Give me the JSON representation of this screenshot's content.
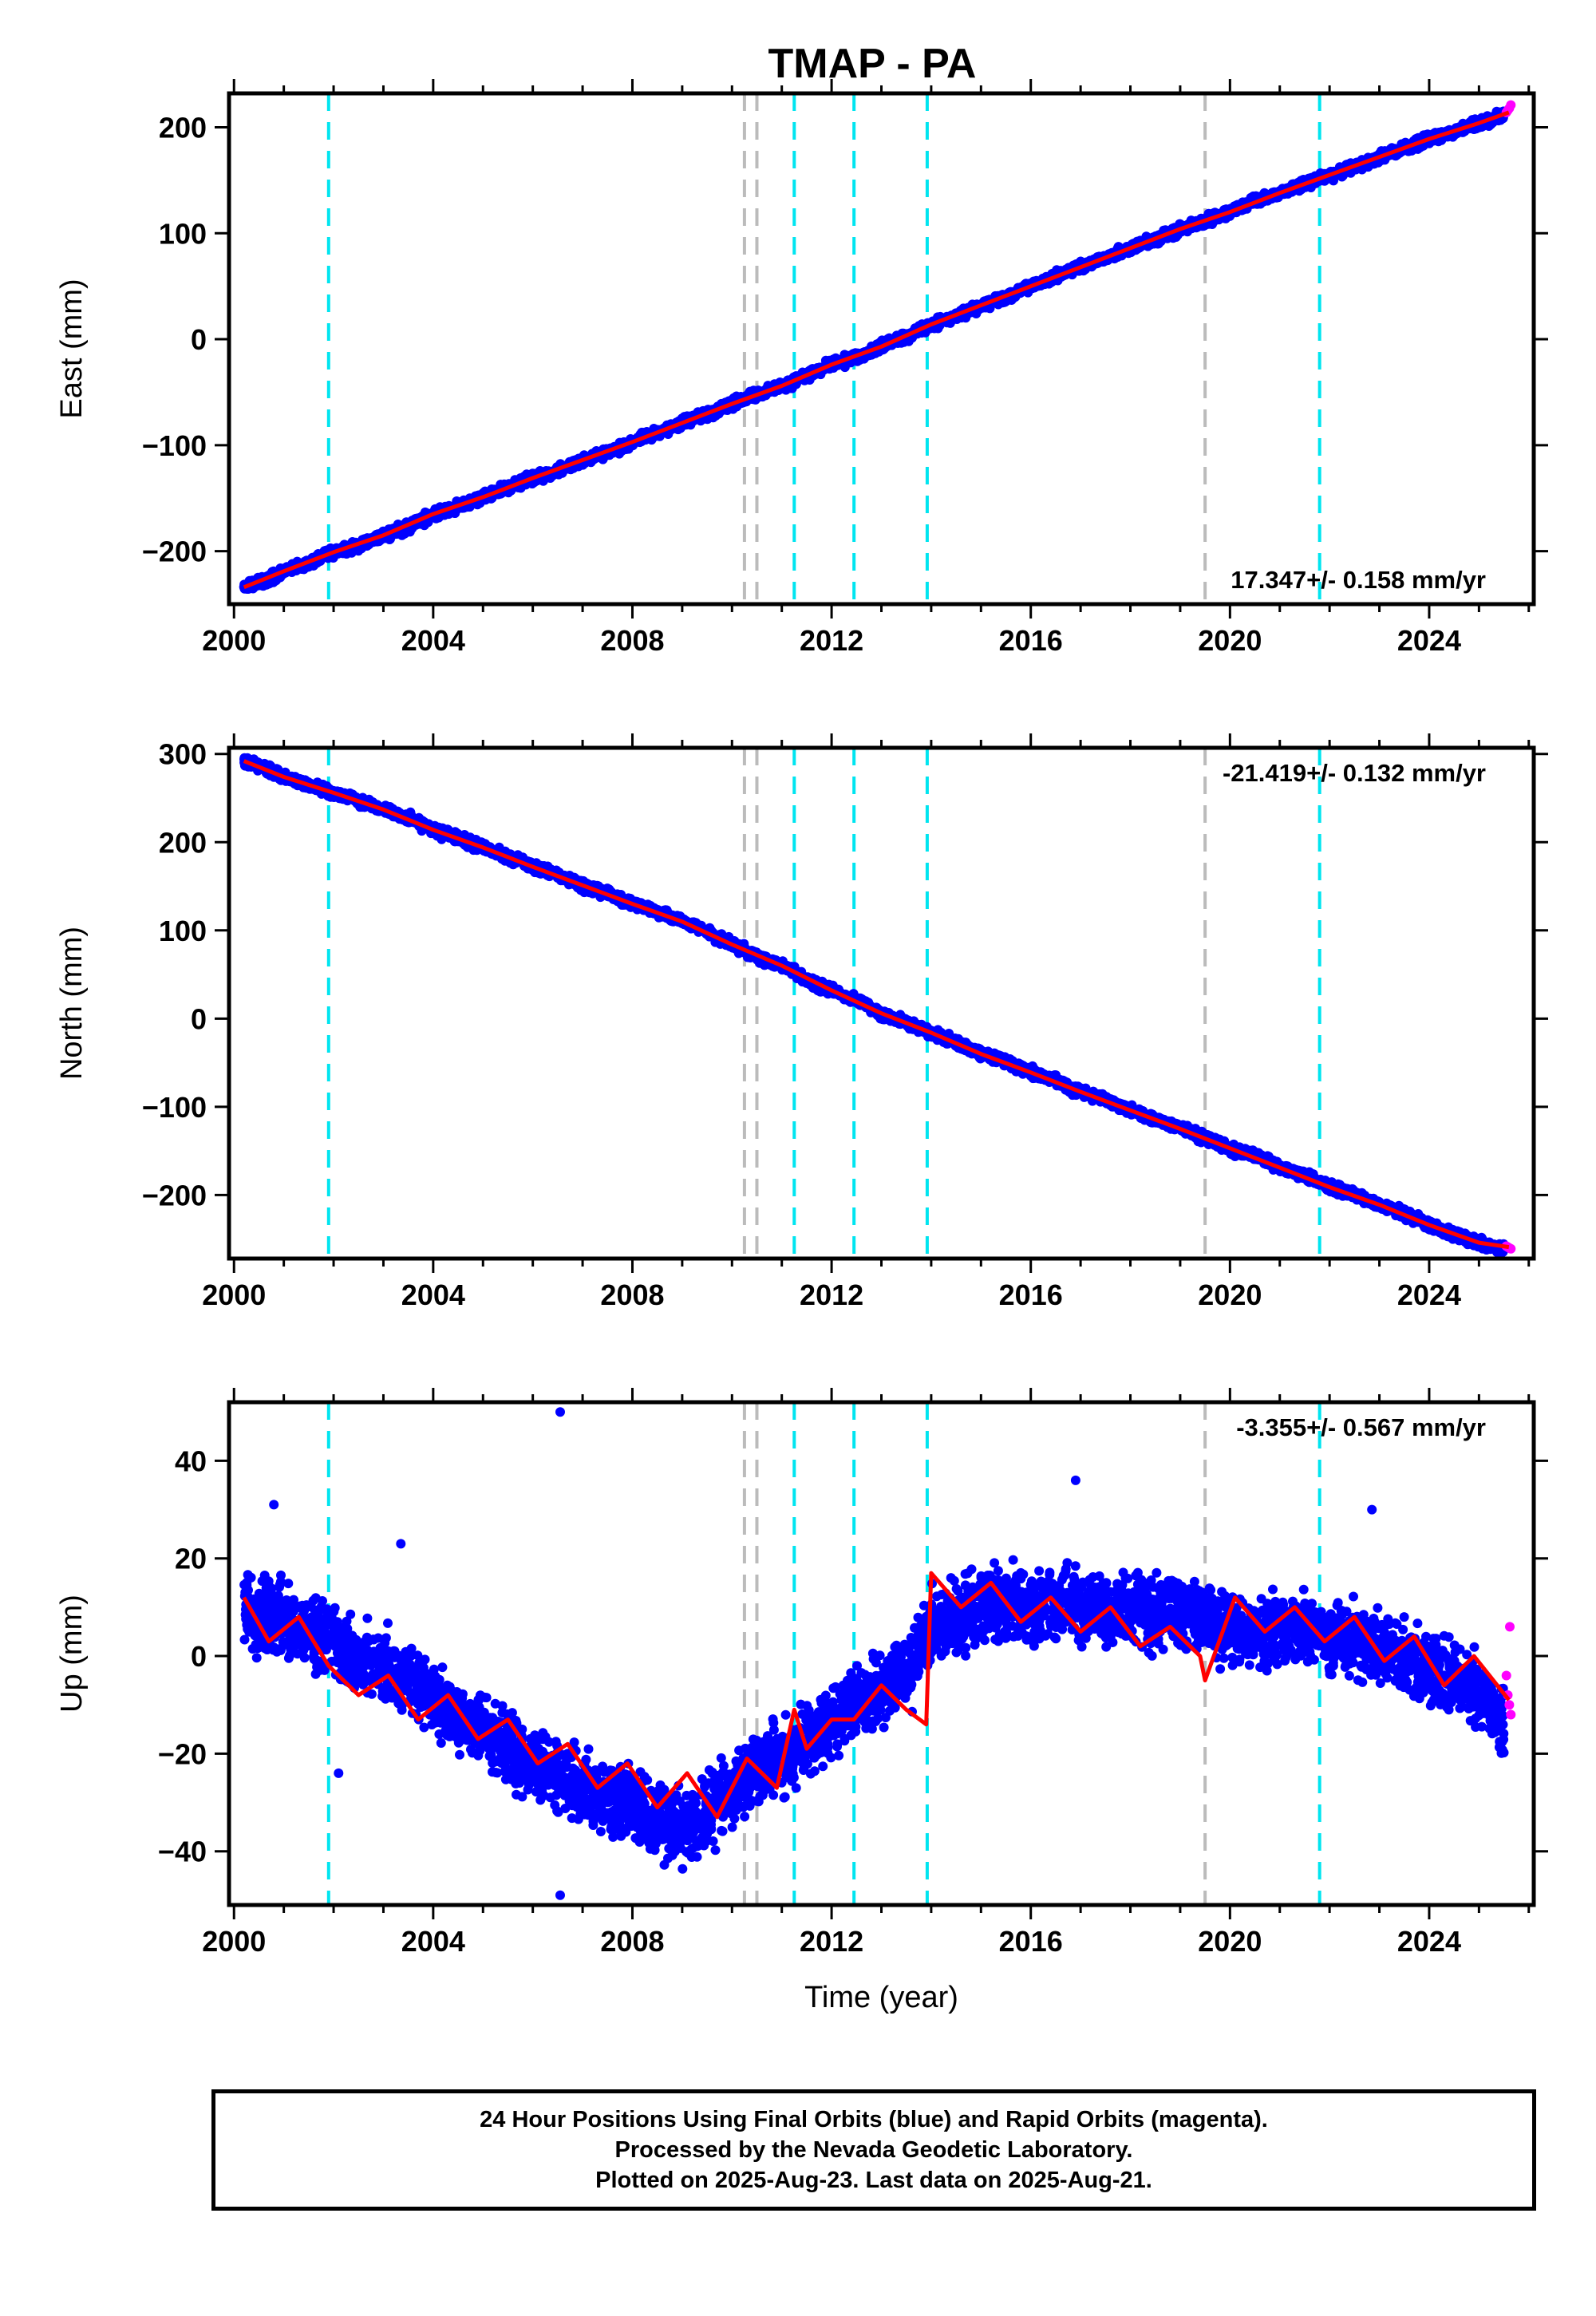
{
  "title": "TMAP - PA",
  "chart_data": [
    {
      "type": "scatter",
      "component": "East",
      "ylabel": "East (mm)",
      "xlabel": "",
      "xlim": [
        1999.9,
        2026.1
      ],
      "ylim": [
        -250,
        232
      ],
      "xticks": [
        2000,
        2004,
        2008,
        2012,
        2016,
        2020,
        2024
      ],
      "yticks": [
        -200,
        -100,
        0,
        100,
        200
      ],
      "rate_label": "17.347+/- 0.158 mm/yr",
      "rate_position": "bottom-right",
      "series": [
        {
          "kind": "final-orbits",
          "color": "#0000ff",
          "x": [
            2000.2,
            2000.6,
            2001.0,
            2001.5,
            2002.0,
            2002.5,
            2003.0,
            2003.5,
            2004.0,
            2004.5,
            2005.0,
            2005.5,
            2006.0,
            2006.5,
            2007.0,
            2007.5,
            2008.0,
            2008.5,
            2009.0,
            2009.5,
            2010.0,
            2010.5,
            2011.0,
            2011.5,
            2012.0,
            2012.5,
            2013.0,
            2013.5,
            2014.0,
            2014.5,
            2015.0,
            2015.5,
            2016.0,
            2016.5,
            2017.0,
            2017.5,
            2018.0,
            2018.5,
            2019.0,
            2019.5,
            2020.0,
            2020.5,
            2021.0,
            2021.5,
            2022.0,
            2022.5,
            2023.0,
            2023.5,
            2024.0,
            2024.5,
            2025.0,
            2025.5
          ],
          "y": [
            -234,
            -228,
            -219,
            -211,
            -201,
            -195,
            -185,
            -177,
            -165,
            -158,
            -149,
            -140,
            -131,
            -125,
            -114,
            -107,
            -97,
            -88,
            -79,
            -70,
            -61,
            -52,
            -44,
            -34,
            -24,
            -16,
            -7,
            2,
            14,
            21,
            32,
            40,
            50,
            59,
            68,
            77,
            86,
            94,
            104,
            111,
            120,
            130,
            138,
            147,
            155,
            163,
            172,
            180,
            189,
            196,
            204,
            212
          ]
        },
        {
          "kind": "rapid-orbits",
          "color": "#ff00ff",
          "x": [
            2025.55,
            2025.58,
            2025.61,
            2025.64
          ],
          "y": [
            214,
            216,
            218,
            221
          ]
        },
        {
          "kind": "model-fit",
          "color": "#ff0000",
          "x": [
            2000.2,
            2001.0,
            2002.0,
            2003.0,
            2004.0,
            2005.0,
            2006.0,
            2007.0,
            2008.0,
            2009.0,
            2010.0,
            2011.0,
            2012.0,
            2013.0,
            2014.0,
            2015.0,
            2016.0,
            2017.0,
            2018.0,
            2019.0,
            2020.0,
            2021.0,
            2022.0,
            2023.0,
            2024.0,
            2025.0,
            2025.6
          ],
          "y": [
            -234,
            -219,
            -201,
            -185,
            -165,
            -149,
            -131,
            -114,
            -97,
            -79,
            -61,
            -44,
            -24,
            -7,
            14,
            32,
            50,
            68,
            86,
            104,
            120,
            138,
            155,
            172,
            189,
            204,
            214
          ]
        }
      ],
      "event_lines": [
        {
          "x": 2001.9,
          "color": "#00e5f0"
        },
        {
          "x": 2010.25,
          "color": "#bbbbbb"
        },
        {
          "x": 2010.5,
          "color": "#bbbbbb"
        },
        {
          "x": 2011.25,
          "color": "#00e5f0"
        },
        {
          "x": 2012.45,
          "color": "#00e5f0"
        },
        {
          "x": 2013.92,
          "color": "#00e5f0"
        },
        {
          "x": 2019.5,
          "color": "#bbbbbb"
        },
        {
          "x": 2021.8,
          "color": "#00e5f0"
        }
      ]
    },
    {
      "type": "scatter",
      "component": "North",
      "ylabel": "North (mm)",
      "xlabel": "",
      "xlim": [
        1999.9,
        2026.1
      ],
      "ylim": [
        -272,
        307
      ],
      "xticks": [
        2000,
        2004,
        2008,
        2012,
        2016,
        2020,
        2024
      ],
      "yticks": [
        -200,
        -100,
        0,
        100,
        200,
        300
      ],
      "rate_label": "-21.419+/- 0.132 mm/yr",
      "rate_position": "top-right",
      "series": [
        {
          "kind": "final-orbits",
          "color": "#0000ff",
          "x": [
            2000.2,
            2000.6,
            2001.0,
            2001.5,
            2002.0,
            2002.5,
            2003.0,
            2003.5,
            2004.0,
            2004.5,
            2005.0,
            2005.5,
            2006.0,
            2006.5,
            2007.0,
            2007.5,
            2008.0,
            2008.5,
            2009.0,
            2009.5,
            2010.0,
            2010.5,
            2011.0,
            2011.5,
            2012.0,
            2012.5,
            2013.0,
            2013.5,
            2014.0,
            2014.5,
            2015.0,
            2015.5,
            2016.0,
            2016.5,
            2017.0,
            2017.5,
            2018.0,
            2018.5,
            2019.0,
            2019.5,
            2020.0,
            2020.5,
            2021.0,
            2021.5,
            2022.0,
            2022.5,
            2023.0,
            2023.5,
            2024.0,
            2024.5,
            2025.0,
            2025.5
          ],
          "y": [
            292,
            284,
            274,
            265,
            256,
            248,
            237,
            228,
            214,
            205,
            194,
            183,
            172,
            163,
            151,
            142,
            130,
            121,
            110,
            99,
            84,
            70,
            60,
            45,
            32,
            21,
            6,
            -4,
            -16,
            -27,
            -40,
            -49,
            -61,
            -71,
            -83,
            -92,
            -104,
            -114,
            -125,
            -134,
            -147,
            -155,
            -169,
            -178,
            -191,
            -199,
            -211,
            -221,
            -234,
            -244,
            -254,
            -262
          ]
        },
        {
          "kind": "rapid-orbits",
          "color": "#ff00ff",
          "x": [
            2025.55,
            2025.58,
            2025.61,
            2025.64
          ],
          "y": [
            -258,
            -259,
            -260,
            -261
          ]
        },
        {
          "kind": "model-fit",
          "color": "#ff0000",
          "x": [
            2000.2,
            2001.0,
            2002.0,
            2003.0,
            2004.0,
            2005.0,
            2006.0,
            2007.0,
            2008.0,
            2009.0,
            2010.0,
            2011.0,
            2012.0,
            2013.0,
            2014.0,
            2015.0,
            2016.0,
            2017.0,
            2018.0,
            2019.0,
            2020.0,
            2021.0,
            2022.0,
            2023.0,
            2024.0,
            2025.0,
            2025.6
          ],
          "y": [
            292,
            274,
            256,
            237,
            214,
            194,
            172,
            151,
            130,
            110,
            84,
            60,
            32,
            6,
            -16,
            -40,
            -61,
            -83,
            -104,
            -125,
            -147,
            -169,
            -191,
            -211,
            -234,
            -254,
            -259
          ]
        }
      ],
      "event_lines": [
        {
          "x": 2001.9,
          "color": "#00e5f0"
        },
        {
          "x": 2010.25,
          "color": "#bbbbbb"
        },
        {
          "x": 2010.5,
          "color": "#bbbbbb"
        },
        {
          "x": 2011.25,
          "color": "#00e5f0"
        },
        {
          "x": 2012.45,
          "color": "#00e5f0"
        },
        {
          "x": 2013.92,
          "color": "#00e5f0"
        },
        {
          "x": 2019.5,
          "color": "#bbbbbb"
        },
        {
          "x": 2021.8,
          "color": "#00e5f0"
        }
      ]
    },
    {
      "type": "scatter",
      "component": "Up",
      "ylabel": "Up (mm)",
      "xlabel": "Time (year)",
      "xlim": [
        1999.9,
        2026.1
      ],
      "ylim": [
        -51,
        52
      ],
      "xticks": [
        2000,
        2004,
        2008,
        2012,
        2016,
        2020,
        2024
      ],
      "yticks": [
        -40,
        -20,
        0,
        20,
        40
      ],
      "rate_label": "-3.355+/- 0.567 mm/yr",
      "rate_position": "top-right",
      "series": [
        {
          "kind": "final-orbits",
          "color": "#0000ff",
          "x": [
            2000.2,
            2000.5,
            2000.8,
            2001.2,
            2001.6,
            2002.0,
            2002.4,
            2002.8,
            2003.2,
            2003.6,
            2004.0,
            2004.4,
            2004.8,
            2005.2,
            2005.6,
            2006.0,
            2006.4,
            2006.8,
            2007.2,
            2007.6,
            2008.0,
            2008.4,
            2008.8,
            2009.2,
            2009.6,
            2010.0,
            2010.4,
            2010.8,
            2011.2,
            2011.6,
            2012.0,
            2012.4,
            2012.8,
            2013.2,
            2013.6,
            2014.0,
            2014.4,
            2014.8,
            2015.2,
            2015.6,
            2016.0,
            2016.4,
            2016.8,
            2017.2,
            2017.6,
            2018.0,
            2018.4,
            2018.8,
            2019.2,
            2019.6,
            2020.0,
            2020.4,
            2020.8,
            2021.2,
            2021.6,
            2022.0,
            2022.4,
            2022.8,
            2023.2,
            2023.6,
            2024.0,
            2024.4,
            2024.8,
            2025.2,
            2025.5
          ],
          "y": [
            10,
            7,
            9,
            6,
            4,
            2,
            0,
            -1,
            -3,
            -5,
            -8,
            -12,
            -14,
            -17,
            -19,
            -21,
            -24,
            -26,
            -28,
            -30,
            -31,
            -33,
            -35,
            -34,
            -32,
            -28,
            -24,
            -22,
            -20,
            -16,
            -13,
            -10,
            -8,
            -5,
            -2,
            6,
            8,
            9,
            10,
            11,
            10,
            11,
            12,
            10,
            9,
            10,
            9,
            10,
            8,
            7,
            5,
            4,
            5,
            5,
            6,
            4,
            3,
            2,
            1,
            -1,
            -3,
            -4,
            -6,
            -9,
            -14
          ]
        },
        {
          "kind": "rapid-orbits",
          "color": "#ff00ff",
          "x": [
            2025.55,
            2025.58,
            2025.61,
            2025.64,
            2025.62
          ],
          "y": [
            -4,
            -8,
            -10,
            -12,
            6
          ]
        },
        {
          "kind": "outliers",
          "color": "#0000ff",
          "x": [
            2006.55,
            2006.55,
            2016.9,
            2022.85,
            2000.8,
            2003.35,
            2002.1
          ],
          "y": [
            50,
            -49,
            36,
            30,
            31,
            23,
            -24
          ]
        },
        {
          "kind": "model-fit",
          "color": "#ff0000",
          "x": [
            2000.2,
            2000.7,
            2001.3,
            2001.9,
            2002.5,
            2003.1,
            2003.7,
            2004.3,
            2004.9,
            2005.5,
            2006.1,
            2006.7,
            2007.3,
            2007.9,
            2008.5,
            2009.1,
            2009.7,
            2010.3,
            2010.9,
            2011.25,
            2011.5,
            2012.0,
            2012.45,
            2013.0,
            2013.5,
            2013.9,
            2014.0,
            2014.6,
            2015.2,
            2015.8,
            2016.4,
            2017.0,
            2017.6,
            2018.2,
            2018.8,
            2019.4,
            2019.5,
            2020.1,
            2020.7,
            2021.3,
            2021.9,
            2022.5,
            2023.1,
            2023.7,
            2024.3,
            2024.9,
            2025.6
          ],
          "y": [
            12,
            3,
            8,
            -2,
            -8,
            -4,
            -13,
            -8,
            -17,
            -13,
            -22,
            -18,
            -27,
            -22,
            -31,
            -24,
            -33,
            -21,
            -27,
            -11,
            -19,
            -13,
            -13,
            -6,
            -11,
            -14,
            17,
            10,
            15,
            7,
            12,
            5,
            10,
            2,
            6,
            0,
            -5,
            12,
            5,
            10,
            3,
            8,
            -1,
            4,
            -6,
            0,
            -9
          ]
        }
      ],
      "event_lines": [
        {
          "x": 2001.9,
          "color": "#00e5f0"
        },
        {
          "x": 2010.25,
          "color": "#bbbbbb"
        },
        {
          "x": 2010.5,
          "color": "#bbbbbb"
        },
        {
          "x": 2011.25,
          "color": "#00e5f0"
        },
        {
          "x": 2012.45,
          "color": "#00e5f0"
        },
        {
          "x": 2013.92,
          "color": "#00e5f0"
        },
        {
          "x": 2019.5,
          "color": "#bbbbbb"
        },
        {
          "x": 2021.8,
          "color": "#00e5f0"
        }
      ]
    }
  ],
  "footer": {
    "line1": "24 Hour Positions Using Final Orbits (blue) and Rapid Orbits (magenta).",
    "line2": "Processed by the Nevada Geodetic Laboratory.",
    "line3": "Plotted on 2025-Aug-23. Last data on 2025-Aug-21."
  }
}
